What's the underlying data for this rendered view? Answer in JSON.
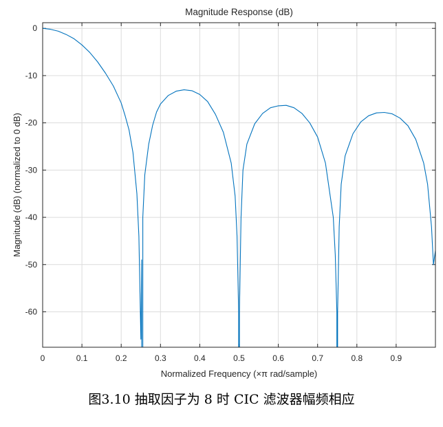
{
  "caption": "图3.10 抽取因子为 8 时 CIC 滤波器幅频相应",
  "chart_data": {
    "type": "line",
    "title": "Magnitude Response (dB)",
    "xlabel": "Normalized Frequency (×π rad/sample)",
    "ylabel": "Magnitude (dB) (normalized to 0 dB)",
    "xlim": [
      0,
      1
    ],
    "ylim": [
      -67.5,
      1.2
    ],
    "grid": true,
    "x_ticks": [
      0,
      0.1,
      0.2,
      0.3,
      0.4,
      0.5,
      0.6,
      0.7,
      0.8,
      0.9
    ],
    "x_tick_labels": [
      "0",
      "0.1",
      "0.2",
      "0.3",
      "0.4",
      "0.5",
      "0.6",
      "0.7",
      "0.8",
      "0.9"
    ],
    "y_ticks": [
      0,
      -10,
      -20,
      -30,
      -40,
      -50,
      -60
    ],
    "y_tick_labels": [
      "0",
      "-10",
      "-20",
      "-30",
      "-40",
      "-50",
      "-60"
    ],
    "line_color": "#0072BD",
    "series": [
      {
        "x": [
          0,
          0.02,
          0.04,
          0.06,
          0.08,
          0.1,
          0.12,
          0.14,
          0.16,
          0.18,
          0.2,
          0.21,
          0.22,
          0.23,
          0.24,
          0.245,
          0.25,
          0.252,
          null,
          0.255,
          0.26,
          0.27,
          0.28,
          0.29,
          0.3,
          0.32,
          0.34,
          0.36,
          0.38,
          0.4,
          0.42,
          0.44,
          0.46,
          0.48,
          0.49,
          0.495,
          0.499,
          null,
          0.501,
          0.505,
          0.51,
          0.52,
          0.54,
          0.56,
          0.58,
          0.6,
          0.62,
          0.64,
          0.66,
          0.68,
          0.7,
          0.72,
          0.74,
          0.745,
          0.749,
          null,
          0.751,
          0.755,
          0.76,
          0.77,
          0.79,
          0.81,
          0.83,
          0.85,
          0.87,
          0.89,
          0.91,
          0.93,
          0.95,
          0.97,
          0.98,
          0.99,
          0.995,
          1.0
        ],
        "y": [
          0,
          -0.2,
          -0.6,
          -1.3,
          -2.2,
          -3.5,
          -5.1,
          -7.1,
          -9.5,
          -12.2,
          -15.8,
          -18.5,
          -21.5,
          -26.3,
          -35,
          -44,
          -65.8,
          -49,
          null,
          -40,
          -31,
          -24.5,
          -20.5,
          -17.7,
          -16.0,
          -14.2,
          -13.3,
          -13.0,
          -13.2,
          -14.0,
          -15.5,
          -18.2,
          -22.0,
          -28.5,
          -35.5,
          -44,
          -60,
          null,
          -60,
          -40,
          -30,
          -24.5,
          -20.2,
          -18.0,
          -16.8,
          -16.4,
          -16.3,
          -16.8,
          -18.0,
          -20.0,
          -23.0,
          -28.5,
          -40,
          -48,
          -60,
          null,
          -60,
          -42,
          -33,
          -27,
          -22.3,
          -19.8,
          -18.5,
          -17.9,
          -17.8,
          -18.1,
          -19.0,
          -20.6,
          -23.5,
          -28.5,
          -33,
          -42,
          -50,
          -47
        ]
      }
    ]
  }
}
